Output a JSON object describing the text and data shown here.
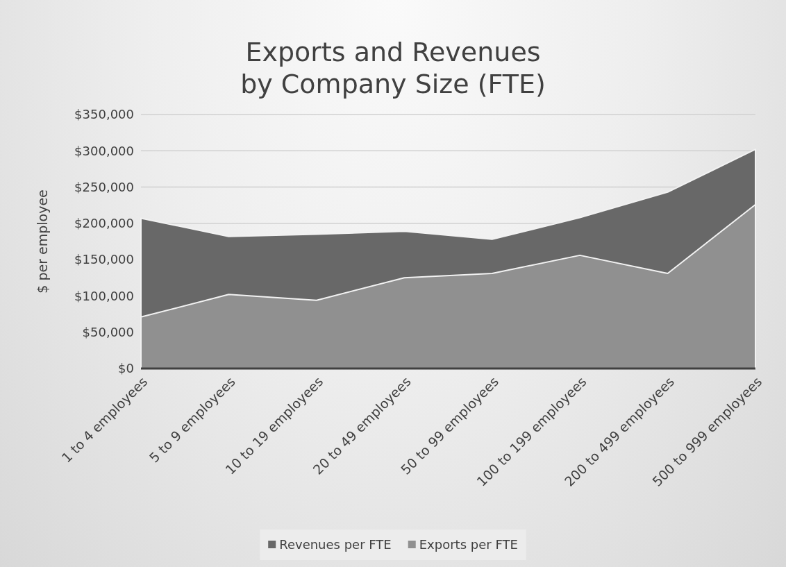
{
  "chart_data": {
    "type": "area",
    "title": "Exports and Revenues\nby Company Size (FTE)",
    "ylabel": "$ per employee",
    "categories": [
      "1 to 4 employees",
      "5 to 9 employees",
      "10 to 19 employees",
      "20 to 49 employees",
      "50 to 99 employees",
      "100 to 199 employees",
      "200 to 499 employees",
      "500 to 999 employees"
    ],
    "series": [
      {
        "name": "Revenues per FTE",
        "color": "#686868",
        "values": [
          207000,
          182000,
          185000,
          189000,
          178000,
          208000,
          243000,
          302000
        ]
      },
      {
        "name": "Exports per FTE",
        "color": "#909090",
        "values": [
          71000,
          102000,
          94000,
          125000,
          131000,
          156000,
          131000,
          226000
        ]
      }
    ],
    "ylim": [
      0,
      350000
    ],
    "yticks": [
      {
        "value": 0,
        "label": "$0"
      },
      {
        "value": 50000,
        "label": "$50,000"
      },
      {
        "value": 100000,
        "label": "$100,000"
      },
      {
        "value": 150000,
        "label": "$150,000"
      },
      {
        "value": 200000,
        "label": "$200,000"
      },
      {
        "value": 250000,
        "label": "$250,000"
      },
      {
        "value": 300000,
        "label": "$300,000"
      },
      {
        "value": 350000,
        "label": "$350,000"
      }
    ],
    "grid": "y",
    "legend": "bottom"
  }
}
